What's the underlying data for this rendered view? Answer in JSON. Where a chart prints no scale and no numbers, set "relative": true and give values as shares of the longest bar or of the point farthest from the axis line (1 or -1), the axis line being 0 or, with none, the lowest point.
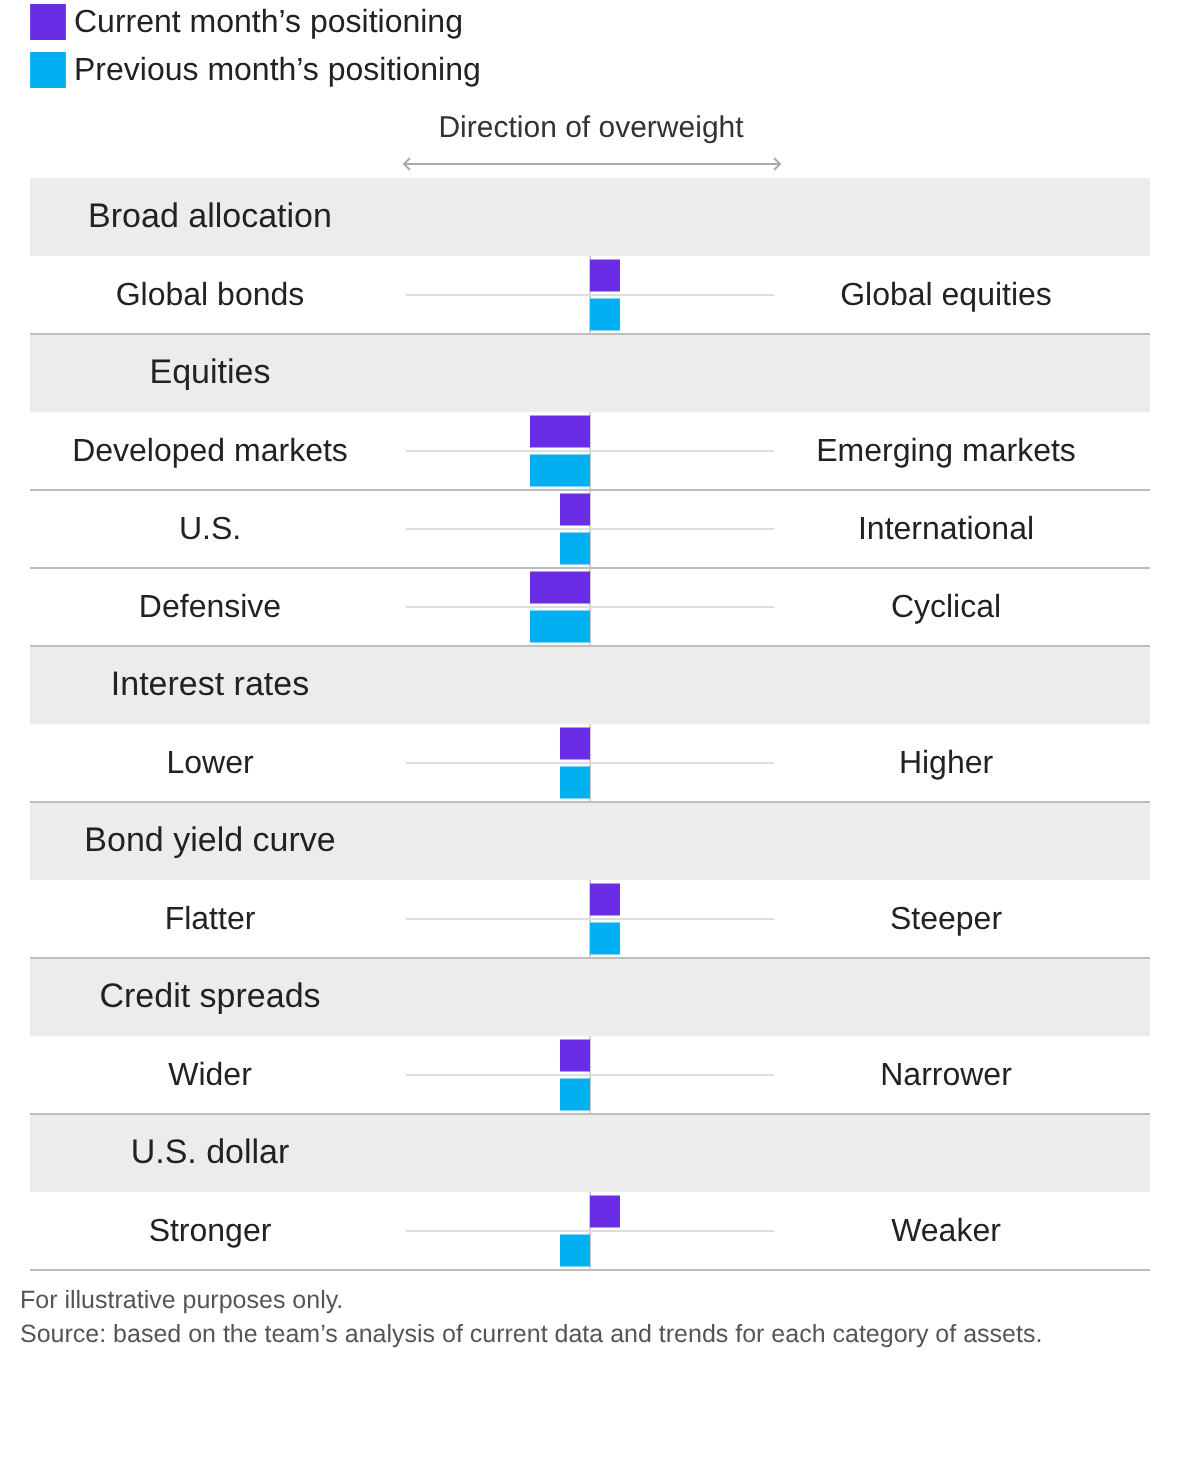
{
  "chart_data": {
    "type": "bar",
    "orientation": "horizontal",
    "relative": true,
    "xlabel": "Direction of overweight",
    "legend": "top",
    "grid": "y",
    "categories": [
      "Broad allocation",
      "Global bonds",
      "Equities",
      "Developed markets",
      "U.S.",
      "Defensive",
      "Interest rates",
      "Lower",
      "Bond yield curve",
      "Flatter",
      "Credit spreads",
      "Wider",
      "U.S. dollar",
      "Stronger"
    ],
    "y2_categories": [
      null,
      "Global equities",
      null,
      "Emerging markets",
      "International",
      "Cyclical",
      null,
      "Higher",
      null,
      "Steeper",
      null,
      "Narrower",
      null,
      "Weaker"
    ],
    "series": [
      {
        "name": "Current month’s positioning",
        "color": "#6a2de6",
        "values": [
          null,
          0.5,
          null,
          -1,
          -0.5,
          -1,
          null,
          -0.5,
          null,
          0.5,
          null,
          -0.5,
          null,
          0.5
        ]
      },
      {
        "name": "Previous month’s positioning",
        "color": "#00b0f0",
        "values": [
          null,
          0.5,
          null,
          -1,
          -0.5,
          -1,
          null,
          -0.5,
          null,
          0.5,
          null,
          -0.5,
          null,
          -0.5
        ]
      }
    ],
    "bands": [
      {
        "axis": "y",
        "from": "Broad allocation",
        "to": "Broad allocation",
        "color": "#ececec"
      },
      {
        "axis": "y",
        "from": "Equities",
        "to": "Equities",
        "color": "#ececec"
      },
      {
        "axis": "y",
        "from": "Interest rates",
        "to": "Interest rates",
        "color": "#ececec"
      },
      {
        "axis": "y",
        "from": "Bond yield curve",
        "to": "Bond yield curve",
        "color": "#ececec"
      },
      {
        "axis": "y",
        "from": "Credit spreads",
        "to": "Credit spreads",
        "color": "#ececec"
      },
      {
        "axis": "y",
        "from": "U.S. dollar",
        "to": "U.S. dollar",
        "color": "#ececec"
      }
    ],
    "annotations": [
      "For illustrative purposes only.",
      "Source: based on the team’s analysis of current data and trends for each category of assets."
    ]
  }
}
